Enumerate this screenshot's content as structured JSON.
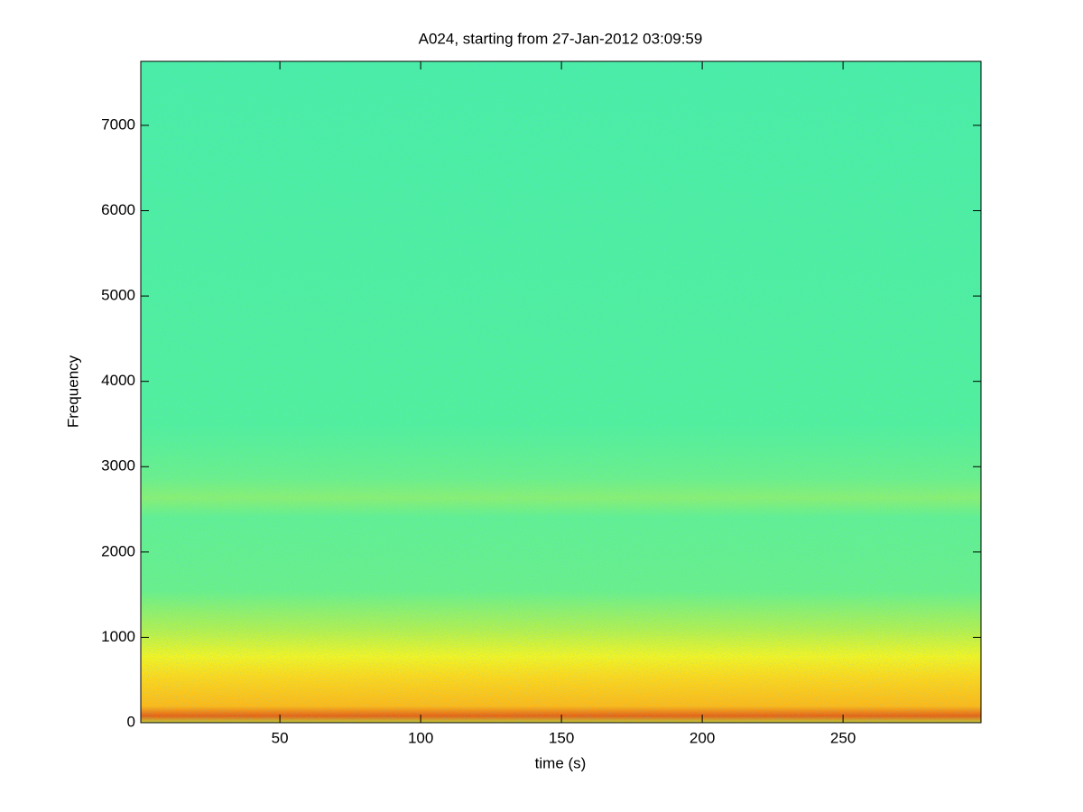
{
  "chart_data": {
    "type": "spectrogram",
    "title": "A024, starting from 27-Jan-2012 03:09:59",
    "xlabel": "time (s)",
    "ylabel": "Frequency",
    "xlim": [
      0.6,
      299
    ],
    "ylim": [
      0,
      7750
    ],
    "xticks": [
      50,
      100,
      150,
      200,
      250
    ],
    "yticks": [
      0,
      1000,
      2000,
      3000,
      4000,
      5000,
      6000,
      7000
    ]
  }
}
